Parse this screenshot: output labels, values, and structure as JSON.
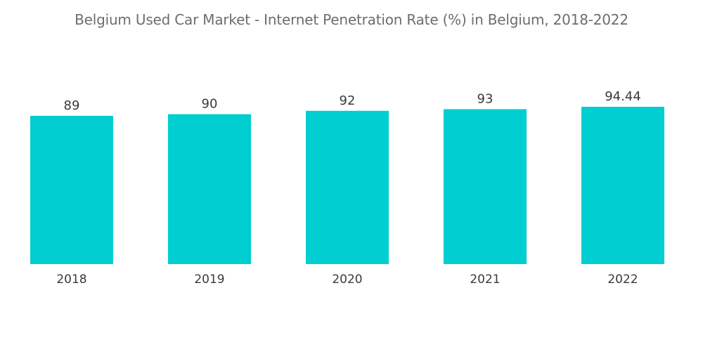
{
  "chart_data": {
    "type": "bar",
    "title": "Belgium Used Car Market - Internet Penetration Rate (%) in Belgium, 2018-2022",
    "categories": [
      "2018",
      "2019",
      "2020",
      "2021",
      "2022"
    ],
    "values": [
      89,
      90,
      92,
      93,
      94.44
    ],
    "value_labels": [
      "89",
      "90",
      "92",
      "93",
      "94.44"
    ],
    "xlabel": "",
    "ylabel": "",
    "ylim": [
      0,
      94.44
    ],
    "grid": false,
    "legend": "none",
    "colors": {
      "bar": "#00CED1",
      "text": "#3a3a3a",
      "title": "#6d6d6d"
    }
  }
}
